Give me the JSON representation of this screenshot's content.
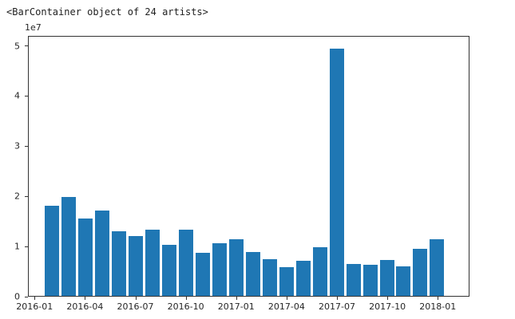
{
  "console": {
    "repr_line": "<BarContainer object of 24 artists>"
  },
  "colors": {
    "bar": "#1f77b4",
    "spine": "#333333",
    "text": "#262626"
  },
  "chart_data": {
    "type": "bar",
    "title": "",
    "xlabel": "",
    "ylabel": "",
    "grid": false,
    "legend": null,
    "offset_label": "1e7",
    "x": [
      "2016-01",
      "2016-02",
      "2016-03",
      "2016-04",
      "2016-05",
      "2016-06",
      "2016-07",
      "2016-08",
      "2016-09",
      "2016-10",
      "2016-11",
      "2016-12",
      "2017-01",
      "2017-02",
      "2017-03",
      "2017-04",
      "2017-05",
      "2017-06",
      "2017-07",
      "2017-08",
      "2017-09",
      "2017-10",
      "2017-11",
      "2017-12"
    ],
    "values": [
      18100000,
      19900000,
      15500000,
      17200000,
      12900000,
      12000000,
      13300000,
      10200000,
      13300000,
      8700000,
      10600000,
      11300000,
      8800000,
      7300000,
      5800000,
      7000000,
      9800000,
      49600000,
      6400000,
      6200000,
      7200000,
      6000000,
      9500000,
      11400000
    ],
    "xticks": [
      "2016-01",
      "2016-04",
      "2016-07",
      "2016-10",
      "2017-01",
      "2017-04",
      "2017-07",
      "2017-10",
      "2018-01"
    ],
    "yticks": [
      "0",
      "1",
      "2",
      "3",
      "4",
      "5"
    ],
    "ytick_values": [
      0,
      10000000,
      20000000,
      30000000,
      40000000,
      50000000
    ],
    "ylim": [
      0,
      52000000
    ]
  }
}
